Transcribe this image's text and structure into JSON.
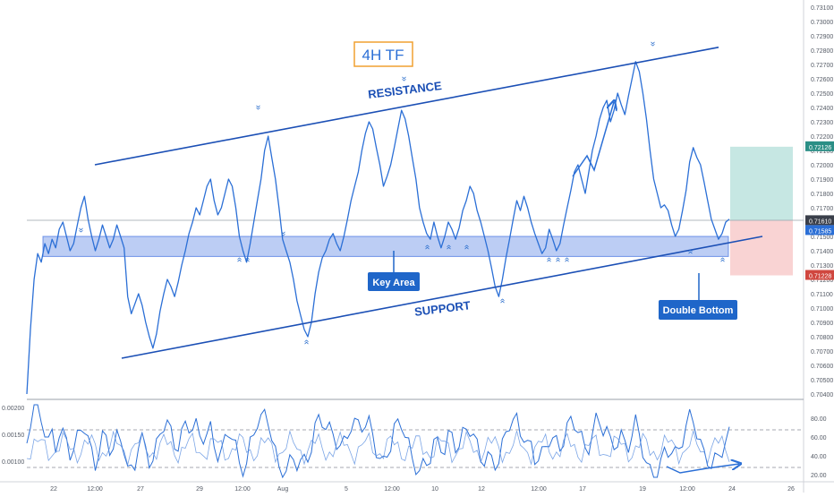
{
  "chart_data": {
    "type": "line",
    "title": "4H TF",
    "x_ticks": [
      "22",
      "12:00",
      "27",
      "29",
      "12:00",
      "Aug",
      "5",
      "12:00",
      "10",
      "12",
      "12:00",
      "17",
      "19",
      "12:00",
      "24",
      "26"
    ],
    "price_ticks": [
      "0.73100",
      "0.73000",
      "0.72900",
      "0.72800",
      "0.72700",
      "0.72600",
      "0.72500",
      "0.72400",
      "0.72300",
      "0.72200",
      "0.72100",
      "0.72000",
      "0.71900",
      "0.71800",
      "0.71700",
      "0.71600",
      "0.71500",
      "0.71400",
      "0.71300",
      "0.71200",
      "0.71100",
      "0.71000",
      "0.70900",
      "0.70800",
      "0.70700",
      "0.70600",
      "0.70500",
      "0.70400"
    ],
    "ylim": [
      0.7035,
      0.7315
    ],
    "current_price_labels": {
      "target": "0.72126",
      "last": "0.71610",
      "bid": "0.71585",
      "stop": "0.71228"
    },
    "series": [
      {
        "values": [
          0.704,
          0.7085,
          0.712,
          0.7138,
          0.7132,
          0.7145,
          0.7138,
          0.7148,
          0.7142,
          0.7155,
          0.716,
          0.715,
          0.714,
          0.7145,
          0.7158,
          0.717,
          0.7178,
          0.7162,
          0.715,
          0.714,
          0.7148,
          0.7158,
          0.715,
          0.7142,
          0.7148,
          0.7158,
          0.715,
          0.7142,
          0.7108,
          0.7096,
          0.7103,
          0.711,
          0.7102,
          0.709,
          0.708,
          0.7072,
          0.7082,
          0.7098,
          0.711,
          0.712,
          0.7115,
          0.7108,
          0.7118,
          0.713,
          0.714,
          0.7152,
          0.716,
          0.717,
          0.7165,
          0.7175,
          0.7185,
          0.719,
          0.7175,
          0.7165,
          0.717,
          0.718,
          0.719,
          0.7185,
          0.717,
          0.715,
          0.714,
          0.7132,
          0.7145,
          0.716,
          0.7175,
          0.719,
          0.721,
          0.722,
          0.7205,
          0.719,
          0.717,
          0.7148,
          0.714,
          0.7132,
          0.712,
          0.7105,
          0.7095,
          0.7085,
          0.708,
          0.709,
          0.711,
          0.7125,
          0.7135,
          0.714,
          0.7148,
          0.7152,
          0.7145,
          0.714,
          0.715,
          0.7162,
          0.7175,
          0.7185,
          0.7195,
          0.721,
          0.7222,
          0.723,
          0.7225,
          0.7212,
          0.72,
          0.7185,
          0.7192,
          0.72,
          0.7212,
          0.7225,
          0.7238,
          0.7232,
          0.722,
          0.7205,
          0.719,
          0.717,
          0.716,
          0.7152,
          0.7148,
          0.716,
          0.715,
          0.7142,
          0.715,
          0.716,
          0.7155,
          0.7148,
          0.7156,
          0.7168,
          0.7175,
          0.7185,
          0.718,
          0.7168,
          0.716,
          0.715,
          0.714,
          0.7128,
          0.7115,
          0.7108,
          0.712,
          0.7135,
          0.7148,
          0.7162,
          0.7175,
          0.7168,
          0.7178,
          0.717,
          0.716,
          0.7152,
          0.7145,
          0.7138,
          0.7142,
          0.7155,
          0.7148,
          0.714,
          0.7145,
          0.7158,
          0.717,
          0.7182,
          0.7195,
          0.72,
          0.719,
          0.718,
          0.7195,
          0.721,
          0.722,
          0.7232,
          0.724,
          0.7245,
          0.723,
          0.7238,
          0.725,
          0.7242,
          0.7235,
          0.7248,
          0.726,
          0.7272,
          0.7265,
          0.725,
          0.7232,
          0.721,
          0.719,
          0.718,
          0.717,
          0.7172,
          0.7168,
          0.7158,
          0.715,
          0.7155,
          0.7168,
          0.7182,
          0.7202,
          0.7212,
          0.7205,
          0.72,
          0.7188,
          0.7175,
          0.7162,
          0.7155,
          0.7148,
          0.7152,
          0.716,
          0.7162
        ]
      }
    ],
    "resistance": {
      "start": 0.72,
      "end": 0.7282,
      "label": "RESISTANCE"
    },
    "support": {
      "start": 0.7065,
      "end": 0.715,
      "label": "SUPPORT"
    },
    "key_area": {
      "low": 0.7136,
      "high": 0.715,
      "label": "Key Area"
    },
    "target_zone": {
      "low": 0.7161,
      "high": 0.72126
    },
    "stop_zone": {
      "low": 0.71228,
      "high": 0.7161
    },
    "double_bottom_label": "Double Bottom",
    "indicator": {
      "ticks_left": [
        "0.00200",
        "0.00150",
        "0.00100"
      ],
      "ticks_right": [
        "80.00",
        "60.00",
        "40.00",
        "20.00"
      ],
      "levels_right": [
        70,
        30
      ]
    }
  },
  "colors": {
    "line": "#2b6fd6",
    "trendline": "#1b4fb5",
    "key_area": "#3f6fe0",
    "target": "#b8e1dc",
    "stop": "#f7c8c8",
    "title_border": "#f0a030",
    "title_text": "#2b6fd6",
    "callout": "#1f66c9"
  }
}
